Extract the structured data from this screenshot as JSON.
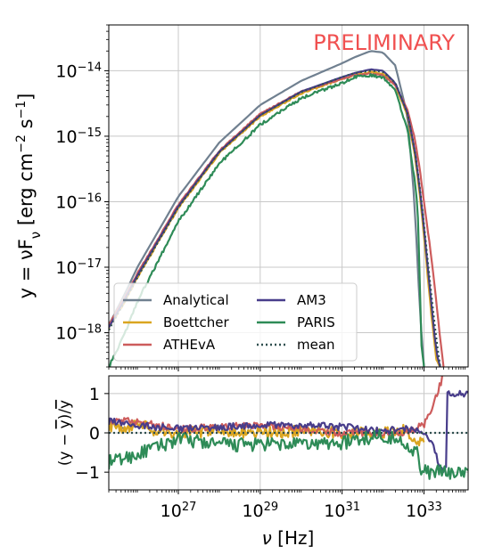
{
  "annotation": "PRELIMINARY",
  "colors": {
    "Analytical": "#708090",
    "Boettcher": "#DAA520",
    "ATHEvA": "#CD5C5C",
    "AM3": "#483D8B",
    "PARIS": "#2E8B57",
    "mean": "#2F4F4F",
    "annotation": "#f05050",
    "grid": "#c8c8c8"
  },
  "chart_data": [
    {
      "type": "line",
      "panel": "main",
      "xscale": "log",
      "yscale": "log",
      "xlim": [
        2e+25,
        1.2e+34
      ],
      "ylim": [
        3e-19,
        5e-14
      ],
      "ylabel": "y = νF_ν [erg cm^-2 s^-1]",
      "yticks": [
        {
          "value": 1e-14,
          "base": "10",
          "exp": "−14"
        },
        {
          "value": 1e-15,
          "base": "10",
          "exp": "−15"
        },
        {
          "value": 1e-16,
          "base": "10",
          "exp": "−16"
        },
        {
          "value": 1e-17,
          "base": "10",
          "exp": "−17"
        },
        {
          "value": 1e-18,
          "base": "10",
          "exp": "−18"
        }
      ],
      "grid": true,
      "legend_position": "bottom-left",
      "annotation": "PRELIMINARY",
      "series": [
        {
          "name": "Analytical",
          "style": "solid",
          "noise": 0,
          "x": [
            2e+25,
            5e+25,
            1e+26,
            1e+27,
            1e+28,
            1e+29,
            1e+30,
            1e+31,
            2e+31,
            5e+31,
            1e+32,
            2e+32,
            4e+32,
            6e+32,
            8e+32,
            1e+33
          ],
          "y": [
            1.3e-18,
            4e-18,
            1e-17,
            1.2e-16,
            8e-16,
            3e-15,
            7e-15,
            1.3e-14,
            1.6e-14,
            2e-14,
            1.9e-14,
            1.2e-14,
            2e-15,
            8e-17,
            2e-18,
            3e-19
          ]
        },
        {
          "name": "Boettcher",
          "style": "solid",
          "noise": 0.025,
          "x": [
            2e+25,
            5e+25,
            1e+26,
            1e+27,
            1e+28,
            1e+29,
            1e+30,
            1e+31,
            2e+31,
            5e+31,
            1e+32,
            2e+32,
            4e+32,
            6e+32,
            8e+32,
            1e+33,
            1.5e+33,
            2e+33,
            2.5e+33
          ],
          "y": [
            1.2e-18,
            3e-18,
            7e-18,
            8e-17,
            5.5e-16,
            2e-15,
            4.5e-15,
            7.5e-15,
            8.5e-15,
            9.5e-15,
            9e-15,
            6e-15,
            2e-15,
            5e-16,
            1.2e-16,
            3e-17,
            2e-18,
            4e-19,
            3e-19
          ]
        },
        {
          "name": "ATHEvA",
          "style": "solid",
          "noise": 0.02,
          "x": [
            2e+25,
            5e+25,
            1e+26,
            1e+27,
            1e+28,
            1e+29,
            1e+30,
            1e+31,
            2e+31,
            5e+31,
            1e+32,
            2e+32,
            4e+32,
            6e+32,
            8e+32,
            1e+33,
            1.5e+33,
            2e+33,
            2.5e+33,
            3e+33
          ],
          "y": [
            1.3e-18,
            3.5e-18,
            8e-18,
            9e-17,
            6e-16,
            2.2e-15,
            4.8e-15,
            7.5e-15,
            8.5e-15,
            9e-15,
            8.5e-15,
            6e-15,
            2.5e-15,
            9e-16,
            3e-16,
            1e-16,
            1.5e-17,
            3e-18,
            8e-19,
            3e-19
          ]
        },
        {
          "name": "AM3",
          "style": "solid",
          "noise": 0,
          "x": [
            2e+25,
            5e+25,
            1e+26,
            1e+27,
            1e+28,
            1e+29,
            1e+30,
            1e+31,
            2e+31,
            5e+31,
            1e+32,
            2e+32,
            4e+32,
            6e+32,
            8e+32,
            1e+33,
            1.5e+33,
            2e+33,
            2.5e+33
          ],
          "y": [
            1.2e-18,
            3.3e-18,
            7.5e-18,
            8.5e-17,
            5.8e-16,
            2.1e-15,
            4.8e-15,
            8e-15,
            9.2e-15,
            1.05e-14,
            1e-14,
            6.5e-15,
            2.2e-15,
            6e-16,
            1.5e-16,
            4e-17,
            3e-18,
            5e-19,
            3e-19
          ]
        },
        {
          "name": "PARIS",
          "style": "solid",
          "noise": 0.045,
          "x": [
            2e+25,
            5e+25,
            1e+26,
            1e+27,
            1e+28,
            1e+29,
            1e+30,
            1e+31,
            2e+31,
            5e+31,
            1e+32,
            2e+32,
            4e+32,
            6e+32,
            7e+32,
            8e+32,
            8.5e+32,
            9e+32,
            1e+33
          ],
          "y": [
            3e-19,
            1e-18,
            3e-18,
            5e-17,
            3.8e-16,
            1.5e-15,
            3.8e-15,
            6.5e-15,
            8e-15,
            8.5e-15,
            8e-15,
            5e-15,
            1.2e-15,
            2e-16,
            8e-17,
            5e-18,
            8e-19,
            5e-19,
            3e-19
          ]
        },
        {
          "name": "mean",
          "style": "dotted",
          "noise": 0,
          "x": [
            2e+25,
            5e+25,
            1e+26,
            1e+27,
            1e+28,
            1e+29,
            1e+30,
            1e+31,
            2e+31,
            5e+31,
            1e+32,
            2e+32,
            4e+32,
            6e+32,
            8e+32,
            1e+33,
            1.5e+33,
            2e+33,
            2.5e+33
          ],
          "y": [
            1.1e-18,
            3.1e-18,
            7e-18,
            8.2e-17,
            5.7e-16,
            2.1e-15,
            4.7e-15,
            8e-15,
            9.2e-15,
            1e-14,
            9.7e-15,
            6.5e-15,
            2.2e-15,
            6e-16,
            1.6e-16,
            4.5e-17,
            4e-18,
            8e-19,
            3e-19
          ]
        }
      ]
    },
    {
      "type": "line",
      "panel": "residual",
      "xscale": "log",
      "xlim": [
        2e+25,
        1.2e+34
      ],
      "ylim": [
        -1.45,
        1.45
      ],
      "xlabel": "ν [Hz]",
      "ylabel": "(y − ȳ)/ȳ",
      "xticks": [
        {
          "value": 1e+27,
          "base": "10",
          "exp": "27"
        },
        {
          "value": 1e+29,
          "base": "10",
          "exp": "29"
        },
        {
          "value": 1e+31,
          "base": "10",
          "exp": "31"
        },
        {
          "value": 1e+33,
          "base": "10",
          "exp": "33"
        }
      ],
      "yticks": [
        {
          "value": 1,
          "label": "1"
        },
        {
          "value": 0,
          "label": "0"
        },
        {
          "value": -1,
          "label": "−1"
        }
      ],
      "grid": true,
      "series": [
        {
          "name": "Analytical",
          "style": "solid",
          "noise": 0,
          "x": [
            2e+25,
            3e+25,
            5e+25
          ],
          "y": [
            0.3,
            0.2,
            0.1
          ]
        },
        {
          "name": "Boettcher",
          "style": "solid",
          "noise": 0.05,
          "x": [
            2e+25,
            5e+25,
            1e+26,
            3e+26,
            1e+27,
            1e+28,
            1e+29,
            1e+30,
            1e+31,
            5e+31,
            1e+32,
            3e+32,
            1e+33
          ],
          "y": [
            0.2,
            0.1,
            0.3,
            0.0,
            0.0,
            0.05,
            0.0,
            0.05,
            0.0,
            0.0,
            0.0,
            0.1,
            -0.3
          ]
        },
        {
          "name": "ATHEvA",
          "style": "solid",
          "noise": 0.03,
          "x": [
            2e+25,
            1e+26,
            1e+27,
            1e+28,
            1e+29,
            1e+30,
            1e+31,
            1e+32,
            3e+32,
            6e+32,
            1e+33,
            2e+33,
            3e+33
          ],
          "y": [
            0.3,
            0.3,
            0.1,
            0.15,
            0.2,
            0.1,
            0.0,
            0.0,
            0.0,
            0.1,
            0.2,
            0.9,
            1.5
          ]
        },
        {
          "name": "AM3",
          "style": "solid",
          "noise": 0.03,
          "x": [
            2e+25,
            1e+26,
            1e+27,
            1e+28,
            1e+29,
            1e+30,
            1e+31,
            1e+32,
            5e+32,
            1e+33,
            1.5e+33,
            2.5e+33,
            3.5e+33,
            3.6e+33,
            1.2e+34
          ],
          "y": [
            0.3,
            0.2,
            0.1,
            0.15,
            0.2,
            0.2,
            0.15,
            0.05,
            0.1,
            0.0,
            -0.2,
            -0.9,
            -0.95,
            1.0,
            1.0
          ]
        },
        {
          "name": "PARIS",
          "style": "solid",
          "noise": 0.06,
          "x": [
            2e+25,
            1e+26,
            1e+27,
            1e+28,
            1e+29,
            1e+30,
            1e+31,
            1e+32,
            4e+32,
            7e+32,
            8e+32,
            1e+33,
            1.2e+34
          ],
          "y": [
            -0.75,
            -0.55,
            -0.15,
            -0.3,
            -0.3,
            -0.3,
            -0.25,
            -0.05,
            -0.3,
            -0.5,
            -0.95,
            -1.0,
            -1.0
          ]
        },
        {
          "name": "mean",
          "style": "dotted",
          "noise": 0,
          "x": [
            2e+25,
            1.2e+34
          ],
          "y": [
            0,
            0
          ]
        }
      ]
    }
  ]
}
